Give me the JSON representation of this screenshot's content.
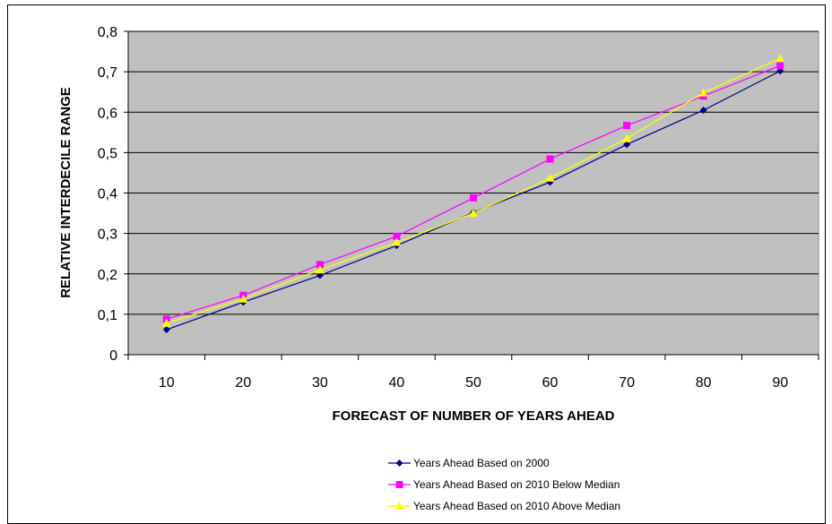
{
  "chart_data": {
    "type": "line",
    "title": "",
    "xlabel": "FORECAST OF NUMBER OF YEARS AHEAD",
    "ylabel": "RELATIVE INTERDECILE RANGE",
    "categories": [
      "10",
      "20",
      "30",
      "40",
      "50",
      "60",
      "70",
      "80",
      "90"
    ],
    "y_ticks": [
      "0",
      "0,1",
      "0,2",
      "0,3",
      "0,4",
      "0,5",
      "0,6",
      "0,7",
      "0,8"
    ],
    "ylim": [
      0,
      0.8
    ],
    "grid": true,
    "legend_position": "bottom",
    "plot_background": "#c0c0c0",
    "series": [
      {
        "name": "Years Ahead Based on 2000",
        "color": "#000080",
        "marker": "diamond",
        "values": [
          0.062,
          0.13,
          0.196,
          0.27,
          0.352,
          0.427,
          0.52,
          0.605,
          0.702
        ]
      },
      {
        "name": "Years Ahead Based on 2010 Below Median",
        "color": "#ff00ff",
        "marker": "square",
        "values": [
          0.088,
          0.147,
          0.223,
          0.293,
          0.388,
          0.484,
          0.567,
          0.64,
          0.715
        ]
      },
      {
        "name": "Years Ahead Based on 2010 Above Median",
        "color": "#ffff00",
        "marker": "triangle",
        "values": [
          0.078,
          0.138,
          0.21,
          0.278,
          0.35,
          0.437,
          0.535,
          0.648,
          0.733
        ]
      }
    ]
  }
}
